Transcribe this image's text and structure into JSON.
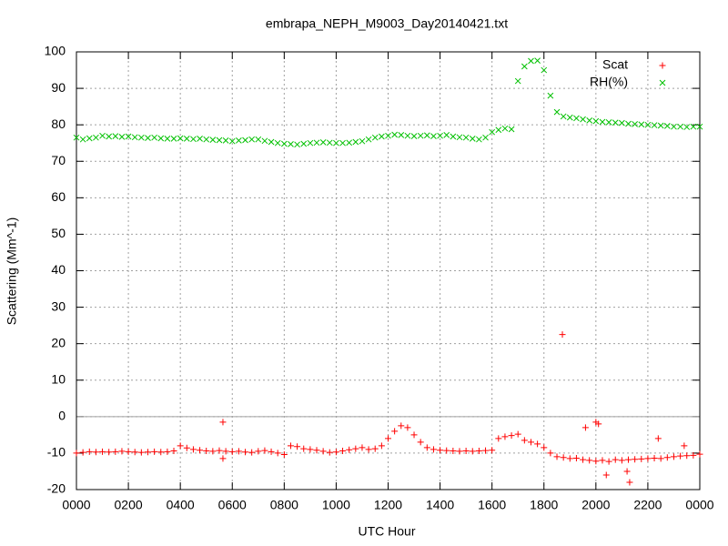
{
  "chart_data": {
    "type": "scatter",
    "title": "embrapa_NEPH_M9003_Day20140421.txt",
    "xlabel": "UTC Hour",
    "ylabel": "Scattering (Mm^-1)",
    "xlim": [
      0,
      24
    ],
    "ylim": [
      -20,
      100
    ],
    "xticks": [
      {
        "value": 0,
        "label": "0000"
      },
      {
        "value": 2,
        "label": "0200"
      },
      {
        "value": 4,
        "label": "0400"
      },
      {
        "value": 6,
        "label": "0600"
      },
      {
        "value": 8,
        "label": "0800"
      },
      {
        "value": 10,
        "label": "1000"
      },
      {
        "value": 12,
        "label": "1200"
      },
      {
        "value": 14,
        "label": "1400"
      },
      {
        "value": 16,
        "label": "1600"
      },
      {
        "value": 18,
        "label": "1800"
      },
      {
        "value": 20,
        "label": "2000"
      },
      {
        "value": 22,
        "label": "2200"
      },
      {
        "value": 24,
        "label": "0000"
      }
    ],
    "yticks": [
      -20,
      -10,
      0,
      10,
      20,
      30,
      40,
      50,
      60,
      70,
      80,
      90,
      100
    ],
    "grid": true,
    "legend": "top-right",
    "series": [
      {
        "name": "Scat",
        "color": "#ff0000",
        "marker": "+",
        "x": [
          0,
          0.25,
          0.5,
          0.75,
          1,
          1.25,
          1.5,
          1.75,
          2,
          2.25,
          2.5,
          2.75,
          3,
          3.25,
          3.5,
          3.75,
          4,
          4.25,
          4.5,
          4.75,
          5,
          5.25,
          5.5,
          5.75,
          6,
          6.25,
          6.5,
          6.75,
          7,
          7.25,
          7.5,
          7.75,
          8,
          8.25,
          8.5,
          8.75,
          9,
          9.25,
          9.5,
          9.75,
          10,
          10.25,
          10.5,
          10.75,
          11,
          11.25,
          11.5,
          11.75,
          12,
          12.25,
          12.5,
          12.75,
          13,
          13.25,
          13.5,
          13.75,
          14,
          14.25,
          14.5,
          14.75,
          15,
          15.25,
          15.5,
          15.75,
          16,
          16.25,
          16.5,
          16.75,
          17,
          17.25,
          17.5,
          17.75,
          18,
          18.25,
          18.5,
          18.75,
          19,
          19.25,
          19.5,
          19.75,
          20,
          20.25,
          20.5,
          20.75,
          21,
          21.25,
          21.5,
          21.75,
          22,
          22.25,
          22.5,
          22.75,
          23,
          23.25,
          23.5,
          23.75,
          24,
          5.64,
          5.64,
          18.71,
          19.6,
          20.0,
          20.1,
          20.4,
          21.3,
          21.2,
          22.4,
          23.4
        ],
        "values": [
          -10,
          -9.8,
          -9.6,
          -9.7,
          -9.6,
          -9.7,
          -9.6,
          -9.5,
          -9.6,
          -9.7,
          -9.8,
          -9.7,
          -9.6,
          -9.7,
          -9.6,
          -9.4,
          -8,
          -8.6,
          -9,
          -9.2,
          -9.4,
          -9.5,
          -9.3,
          -9.5,
          -9.6,
          -9.5,
          -9.7,
          -9.8,
          -9.5,
          -9.3,
          -9.6,
          -10,
          -10.4,
          -8,
          -8.2,
          -8.8,
          -9,
          -9.2,
          -9.5,
          -9.8,
          -9.7,
          -9.4,
          -9.1,
          -8.8,
          -8.5,
          -9,
          -8.8,
          -8,
          -6,
          -4,
          -2.5,
          -3,
          -5,
          -7,
          -8.5,
          -9,
          -9.2,
          -9.3,
          -9.4,
          -9.5,
          -9.4,
          -9.5,
          -9.4,
          -9.3,
          -9.2,
          -6,
          -5.5,
          -5.2,
          -4.8,
          -6.5,
          -7,
          -7.5,
          -8.5,
          -10,
          -11,
          -11.2,
          -11.5,
          -11.4,
          -11.8,
          -12,
          -12.2,
          -12,
          -12.3,
          -11.8,
          -12,
          -11.8,
          -11.7,
          -11.6,
          -11.5,
          -11.4,
          -11.5,
          -11.2,
          -11,
          -10.8,
          -10.7,
          -10.6,
          -10.3,
          -1.5,
          -11.5,
          22.5,
          -3,
          -1.5,
          -2,
          -16,
          -18,
          -15,
          -6,
          -8
        ]
      },
      {
        "name": "RH(%)",
        "color": "#00c000",
        "marker": "x",
        "x": [
          0,
          0.25,
          0.5,
          0.75,
          1,
          1.25,
          1.5,
          1.75,
          2,
          2.25,
          2.5,
          2.75,
          3,
          3.25,
          3.5,
          3.75,
          4,
          4.25,
          4.5,
          4.75,
          5,
          5.25,
          5.5,
          5.75,
          6,
          6.25,
          6.5,
          6.75,
          7,
          7.25,
          7.5,
          7.75,
          8,
          8.25,
          8.5,
          8.75,
          9,
          9.25,
          9.5,
          9.75,
          10,
          10.25,
          10.5,
          10.75,
          11,
          11.25,
          11.5,
          11.75,
          12,
          12.25,
          12.5,
          12.75,
          13,
          13.25,
          13.5,
          13.75,
          14,
          14.25,
          14.5,
          14.75,
          15,
          15.25,
          15.5,
          15.75,
          16,
          16.25,
          16.5,
          16.75,
          17,
          17.25,
          17.5,
          17.75,
          18,
          18.25,
          18.5,
          18.75,
          19,
          19.25,
          19.5,
          19.75,
          20,
          20.25,
          20.5,
          20.75,
          21,
          21.25,
          21.5,
          21.75,
          22,
          22.25,
          22.5,
          22.75,
          23,
          23.25,
          23.5,
          23.75,
          24
        ],
        "values": [
          76.5,
          76,
          76.3,
          76.5,
          77,
          76.8,
          76.9,
          76.7,
          76.8,
          76.6,
          76.5,
          76.4,
          76.5,
          76.3,
          76.2,
          76.2,
          76.3,
          76.2,
          76.1,
          76.2,
          76,
          75.9,
          75.8,
          75.7,
          75.5,
          75.7,
          75.8,
          76,
          76,
          75.6,
          75.3,
          75,
          74.8,
          74.7,
          74.6,
          74.8,
          75,
          75.1,
          75.2,
          75.1,
          75,
          75,
          75.1,
          75.3,
          75.5,
          76,
          76.5,
          76.8,
          77,
          77.3,
          77.2,
          77,
          76.9,
          77,
          77.1,
          76.9,
          77,
          77.2,
          76.8,
          76.6,
          76.5,
          76.2,
          76,
          76.5,
          78,
          78.6,
          79,
          78.8,
          92,
          96,
          97.5,
          97.6,
          95,
          88,
          83.5,
          82.3,
          82,
          81.8,
          81.5,
          81.2,
          81,
          80.8,
          80.7,
          80.6,
          80.5,
          80.3,
          80.2,
          80.1,
          80,
          79.9,
          79.8,
          79.7,
          79.5,
          79.5,
          79.4,
          79.5,
          79.5
        ]
      }
    ]
  }
}
